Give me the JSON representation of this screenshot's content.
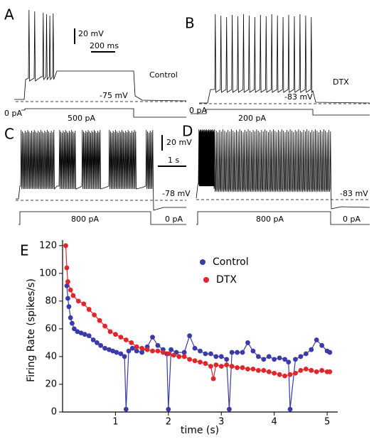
{
  "panels": [
    {
      "letter": "A",
      "condition": "Control",
      "resting": "-75 mV",
      "current_start": "0 pA",
      "current_step": "500 pA",
      "scale_v": "20 mV",
      "scale_t": "200 ms"
    },
    {
      "letter": "B",
      "condition": "DTX",
      "resting": "-83 mV",
      "current_start": "0 pA",
      "current_step": "200 pA"
    },
    {
      "letter": "C",
      "resting": "-78 mV",
      "current_step": "800 pA",
      "current_end": "0 pA",
      "scale_v": "20 mV",
      "scale_t": "1 s"
    },
    {
      "letter": "D",
      "resting": "-83 mV",
      "current_step": "800 pA",
      "current_end": "0 pA"
    }
  ],
  "chart_data": {
    "type": "line",
    "panel": "E",
    "x_label": "time (s)",
    "y_label": "Firing Rate (spikes/s)",
    "xlim": [
      0,
      5.2
    ],
    "ylim": [
      0,
      124
    ],
    "xticks": [
      1,
      2,
      3,
      4,
      5
    ],
    "yticks": [
      0,
      20,
      40,
      60,
      80,
      100,
      120
    ],
    "legend": "top",
    "series": [
      {
        "name": "Control",
        "color": "#3a3aa8",
        "x": [
          0.08,
          0.1,
          0.12,
          0.15,
          0.18,
          0.22,
          0.28,
          0.35,
          0.42,
          0.5,
          0.58,
          0.65,
          0.72,
          0.8,
          0.88,
          0.95,
          1.02,
          1.1,
          1.17,
          1.2,
          1.25,
          1.32,
          1.4,
          1.5,
          1.6,
          1.7,
          1.8,
          1.9,
          1.97,
          2.0,
          2.05,
          2.15,
          2.3,
          2.4,
          2.5,
          2.6,
          2.7,
          2.8,
          2.9,
          3.0,
          3.1,
          3.15,
          3.2,
          3.3,
          3.4,
          3.5,
          3.6,
          3.7,
          3.8,
          3.9,
          4.0,
          4.1,
          4.2,
          4.27,
          4.3,
          4.4,
          4.5,
          4.6,
          4.7,
          4.8,
          4.9,
          5.0,
          5.05
        ],
        "values": [
          91,
          82,
          76,
          68,
          64,
          60,
          58,
          57,
          56,
          55,
          52,
          50,
          48,
          46,
          45,
          44,
          43,
          42,
          40,
          2,
          44,
          46,
          44,
          43,
          47,
          54,
          48,
          45,
          42,
          2,
          45,
          43,
          43,
          55,
          46,
          44,
          42,
          42,
          40,
          40,
          38,
          2,
          43,
          43,
          43,
          50,
          44,
          40,
          38,
          40,
          38,
          39,
          38,
          36,
          2,
          38,
          40,
          42,
          45,
          52,
          48,
          44,
          43
        ]
      },
      {
        "name": "DTX",
        "color": "#e0262a",
        "x": [
          0.06,
          0.08,
          0.1,
          0.15,
          0.2,
          0.3,
          0.4,
          0.5,
          0.6,
          0.7,
          0.8,
          0.9,
          1.0,
          1.1,
          1.2,
          1.3,
          1.4,
          1.5,
          1.6,
          1.7,
          1.8,
          1.9,
          2.0,
          2.1,
          2.2,
          2.3,
          2.4,
          2.5,
          2.6,
          2.7,
          2.8,
          2.85,
          2.9,
          3.0,
          3.1,
          3.2,
          3.3,
          3.4,
          3.5,
          3.6,
          3.7,
          3.8,
          3.9,
          4.0,
          4.1,
          4.2,
          4.3,
          4.4,
          4.5,
          4.6,
          4.7,
          4.8,
          4.9,
          5.0,
          5.05
        ],
        "values": [
          120,
          104,
          94,
          88,
          84,
          80,
          78,
          74,
          70,
          66,
          62,
          58,
          56,
          54,
          52,
          50,
          47,
          46,
          45,
          44,
          44,
          43,
          42,
          41,
          40,
          40,
          38,
          37,
          36,
          35,
          33,
          24,
          34,
          33,
          34,
          33,
          32,
          32,
          31,
          31,
          30,
          30,
          29,
          28,
          27,
          26,
          27,
          28,
          30,
          31,
          30,
          29,
          30,
          29,
          29
        ]
      }
    ]
  }
}
